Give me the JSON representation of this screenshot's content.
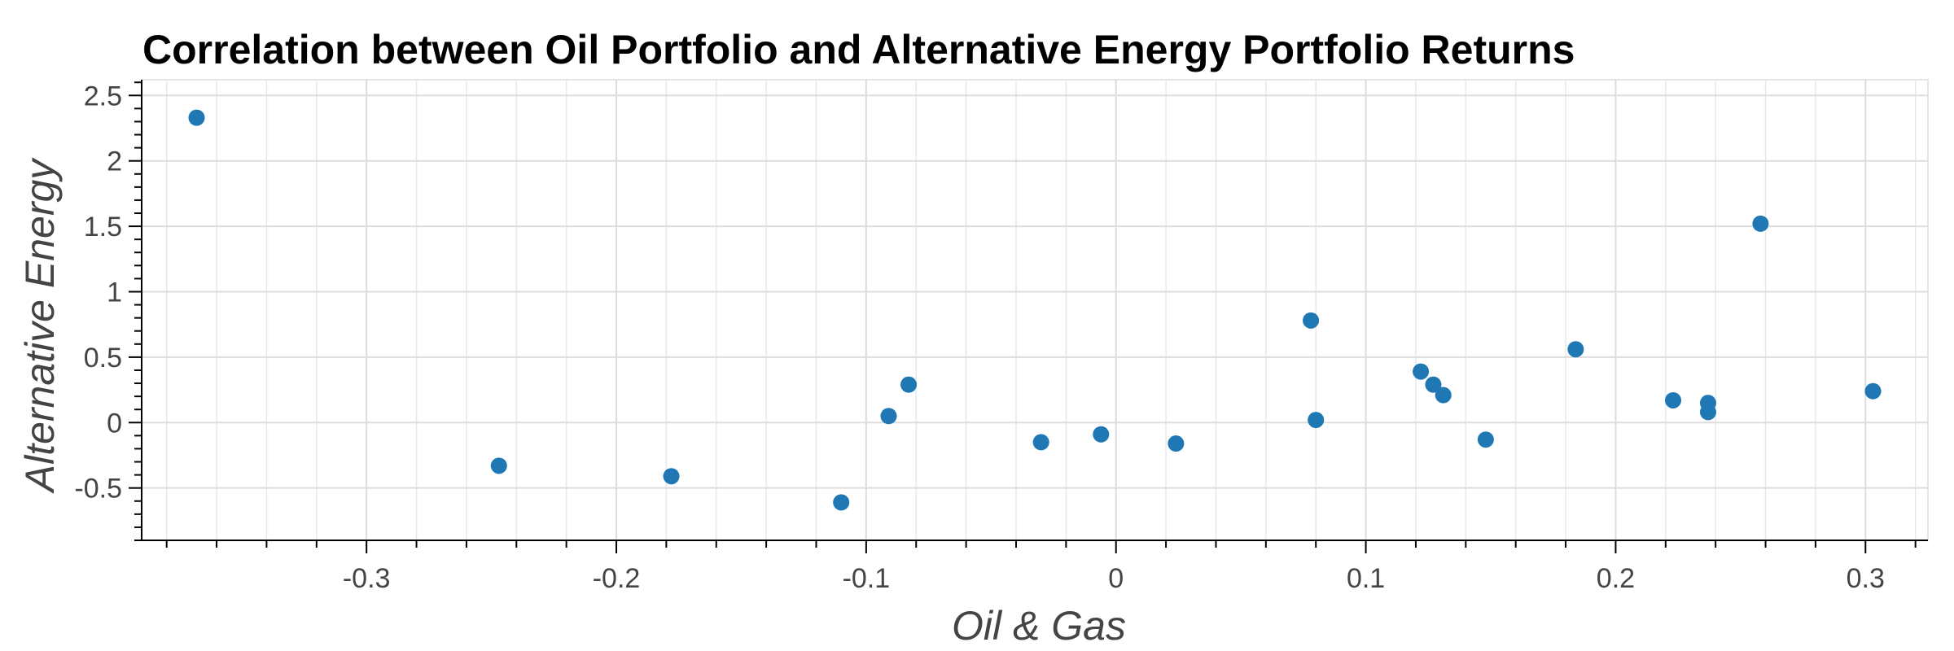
{
  "chart_data": {
    "type": "scatter",
    "title": "Correlation between Oil Portfolio and Alternative Energy Portfolio Returns",
    "xlabel": "Oil & Gas",
    "ylabel": "Alternative Energy",
    "xlim": [
      -0.39,
      0.325
    ],
    "ylim": [
      -0.9,
      2.62
    ],
    "xticks": [
      -0.3,
      -0.2,
      -0.1,
      0,
      0.1,
      0.2,
      0.3
    ],
    "xtick_labels": [
      "-0.3",
      "-0.2",
      "-0.1",
      "0",
      "0.1",
      "0.2",
      "0.3"
    ],
    "yticks": [
      -0.5,
      0,
      0.5,
      1,
      1.5,
      2,
      2.5
    ],
    "ytick_labels": [
      "-0.5",
      "0",
      "0.5",
      "1",
      "1.5",
      "2",
      "2.5"
    ],
    "grid": true,
    "marker_color": "#1f77b4",
    "points": [
      {
        "x": -0.368,
        "y": 2.33
      },
      {
        "x": -0.247,
        "y": -0.33
      },
      {
        "x": -0.178,
        "y": -0.41
      },
      {
        "x": -0.11,
        "y": -0.61
      },
      {
        "x": -0.091,
        "y": 0.05
      },
      {
        "x": -0.083,
        "y": 0.29
      },
      {
        "x": -0.03,
        "y": -0.15
      },
      {
        "x": -0.006,
        "y": -0.09
      },
      {
        "x": 0.024,
        "y": -0.16
      },
      {
        "x": 0.078,
        "y": 0.78
      },
      {
        "x": 0.08,
        "y": 0.02
      },
      {
        "x": 0.122,
        "y": 0.39
      },
      {
        "x": 0.127,
        "y": 0.29
      },
      {
        "x": 0.131,
        "y": 0.21
      },
      {
        "x": 0.148,
        "y": -0.13
      },
      {
        "x": 0.184,
        "y": 0.56
      },
      {
        "x": 0.223,
        "y": 0.17
      },
      {
        "x": 0.237,
        "y": 0.15
      },
      {
        "x": 0.237,
        "y": 0.08
      },
      {
        "x": 0.258,
        "y": 1.52
      },
      {
        "x": 0.303,
        "y": 0.24
      }
    ]
  }
}
